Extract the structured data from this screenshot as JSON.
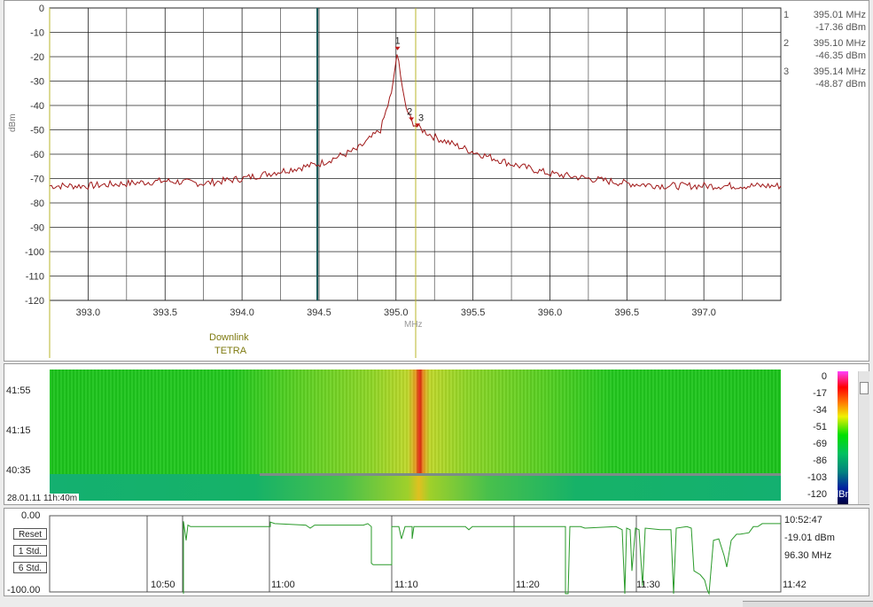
{
  "spectrum": {
    "y_unit": "dBm",
    "x_unit": "MHz",
    "y_ticks": [
      "0",
      "-10",
      "-20",
      "-30",
      "-40",
      "-50",
      "-60",
      "-70",
      "-80",
      "-90",
      "-100",
      "-110",
      "-120"
    ],
    "x_ticks": [
      "393.0",
      "393.5",
      "394.0",
      "394.5",
      "395.0",
      "395.5",
      "396.0",
      "396.5",
      "397.0"
    ],
    "band_label_1": "Downlink",
    "band_label_2": "TETRA",
    "markers": [
      {
        "id": "1",
        "freq": "395.01 MHz",
        "level": "-17.36 dBm"
      },
      {
        "id": "2",
        "freq": "395.10 MHz",
        "level": "-46.35 dBm"
      },
      {
        "id": "3",
        "freq": "395.14 MHz",
        "level": "-48.87 dBm"
      }
    ],
    "trace_color": "#a01818"
  },
  "chart_data": {
    "type": "line",
    "xlabel": "MHz",
    "ylabel": "dBm",
    "xlim": [
      392.75,
      397.5
    ],
    "ylim": [
      -120,
      0
    ],
    "grid": true,
    "series": [
      {
        "x": [
          392.75,
          393.0,
          393.25,
          393.5,
          393.75,
          394.0,
          394.25,
          394.5,
          394.75,
          394.9,
          394.97,
          395.0,
          395.01,
          395.03,
          395.06,
          395.1,
          395.14,
          395.25,
          395.5,
          395.75,
          396.0,
          396.25,
          396.5,
          396.75,
          397.0,
          397.25,
          397.5
        ],
        "y": [
          -73,
          -73,
          -72,
          -71,
          -72,
          -70,
          -67,
          -64,
          -58,
          -50,
          -35,
          -22,
          -17.36,
          -28,
          -40,
          -46.35,
          -48.87,
          -53,
          -59,
          -64,
          -68,
          -70,
          -72,
          -73,
          -73,
          -73,
          -73
        ]
      }
    ]
  },
  "waterfall": {
    "time_labels": [
      "41:55",
      "41:15",
      "40:35"
    ],
    "date_label": "28.01.11 11h:40m",
    "scale_labels": [
      "0",
      "-17",
      "-34",
      "-51",
      "-69",
      "-86",
      "-103",
      "-120"
    ],
    "scale_unit": "dBm"
  },
  "timeline": {
    "y_top": "0.00",
    "y_bottom": "-100.00",
    "buttons": [
      "Reset",
      "1 Std.",
      "6 Std."
    ],
    "time_ticks": [
      "10:50",
      "11:00",
      "11:10",
      "11:20",
      "11:30",
      "11:42"
    ],
    "readout_time": "10:52:47",
    "readout_level": "-19.01 dBm",
    "readout_freq": "96.30 MHz"
  }
}
